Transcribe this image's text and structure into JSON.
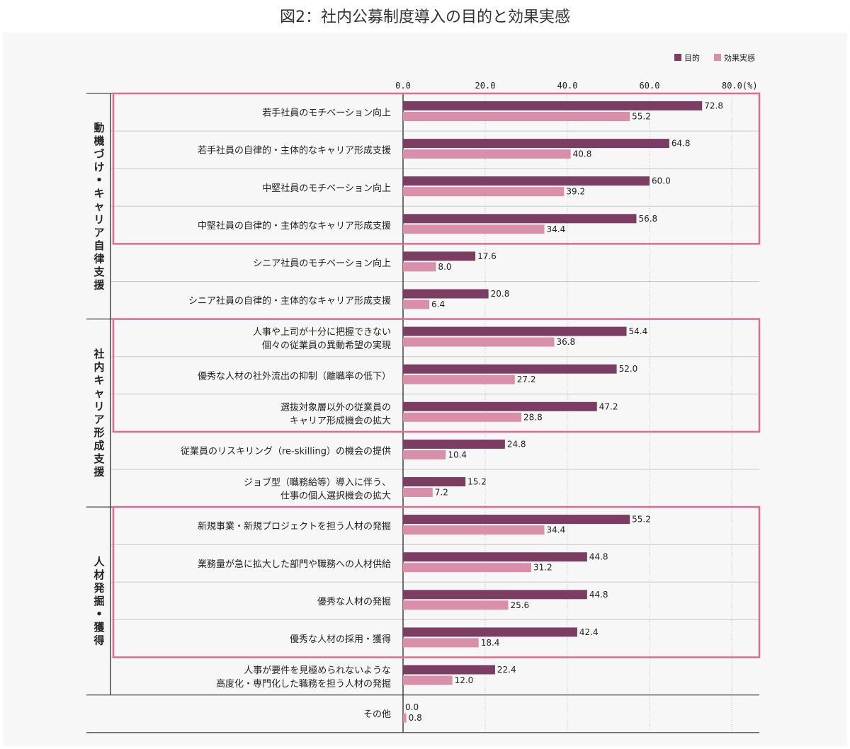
{
  "title": "図2：社内公募制度導入の目的と効果実感",
  "chart_data": {
    "type": "bar",
    "orientation": "horizontal",
    "xlim": [
      0,
      80
    ],
    "ticks": [
      "0.0",
      "20.0",
      "40.0",
      "60.0",
      "80.0(%)"
    ],
    "colors": {
      "purpose": "#7b3d62",
      "effect": "#d98fa9",
      "highlight": "#e06c96"
    },
    "series": [
      {
        "name": "目的"
      },
      {
        "name": "効果実感"
      }
    ],
    "groups": [
      {
        "label": "動機づけ・キャリア自律支援"
      },
      {
        "label": "社内キャリア形成支援"
      },
      {
        "label": "人材発掘・獲得"
      }
    ],
    "rows": [
      {
        "lines": [
          "若手社員のモチベーション向上"
        ],
        "purpose": 72.8,
        "effect": 55.2
      },
      {
        "lines": [
          "若手社員の自律的・主体的なキャリア形成支援"
        ],
        "purpose": 64.8,
        "effect": 40.8
      },
      {
        "lines": [
          "中堅社員のモチベーション向上"
        ],
        "purpose": 60.0,
        "effect": 39.2
      },
      {
        "lines": [
          "中堅社員の自律的・主体的なキャリア形成支援"
        ],
        "purpose": 56.8,
        "effect": 34.4
      },
      {
        "lines": [
          "シニア社員のモチベーション向上"
        ],
        "purpose": 17.6,
        "effect": 8.0
      },
      {
        "lines": [
          "シニア社員の自律的・主体的なキャリア形成支援"
        ],
        "purpose": 20.8,
        "effect": 6.4
      },
      {
        "lines": [
          "人事や上司が十分に把握できない",
          "個々の従業員の異動希望の実現"
        ],
        "purpose": 54.4,
        "effect": 36.8
      },
      {
        "lines": [
          "優秀な人材の社外流出の抑制（離職率の低下）"
        ],
        "purpose": 52.0,
        "effect": 27.2
      },
      {
        "lines": [
          "選抜対象層以外の従業員の",
          "キャリア形成機会の拡大"
        ],
        "purpose": 47.2,
        "effect": 28.8
      },
      {
        "lines": [
          "従業員のリスキリング（re-skilling）の機会の提供"
        ],
        "purpose": 24.8,
        "effect": 10.4
      },
      {
        "lines": [
          "ジョブ型（職務給等）導入に伴う、",
          "仕事の個人選択機会の拡大"
        ],
        "purpose": 15.2,
        "effect": 7.2
      },
      {
        "lines": [
          "新規事業・新規プロジェクトを担う人材の発掘"
        ],
        "purpose": 55.2,
        "effect": 34.4
      },
      {
        "lines": [
          "業務量が急に拡大した部門や職務への人材供給"
        ],
        "purpose": 44.8,
        "effect": 31.2
      },
      {
        "lines": [
          "優秀な人材の発掘"
        ],
        "purpose": 44.8,
        "effect": 25.6
      },
      {
        "lines": [
          "優秀な人材の採用・獲得"
        ],
        "purpose": 42.4,
        "effect": 18.4
      },
      {
        "lines": [
          "人事が要件を見極められないような",
          "高度化・専門化した職務を担う人材の発掘"
        ],
        "purpose": 22.4,
        "effect": 12.0
      },
      {
        "lines": [
          "その他"
        ],
        "purpose": 0.0,
        "effect": 0.8
      }
    ]
  }
}
